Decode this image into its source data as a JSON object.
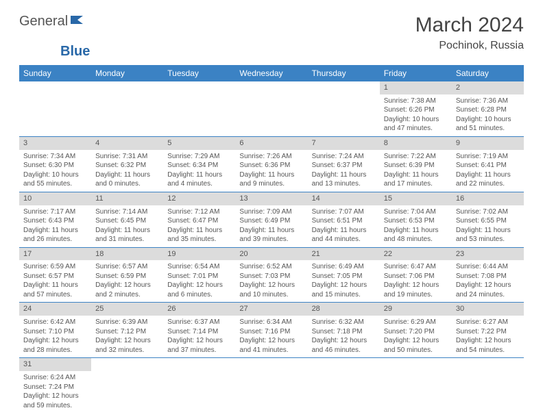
{
  "logo": {
    "text1": "General",
    "text2": "Blue",
    "icon_color": "#2968a8"
  },
  "title": "March 2024",
  "location": "Pochinok, Russia",
  "colors": {
    "header_bg": "#3b82c4",
    "header_fg": "#ffffff",
    "row_alt": "#f2f2f2",
    "daynum_bg": "#dcdcdc",
    "border": "#3b82c4"
  },
  "fonts": {
    "title_size": 30,
    "location_size": 16,
    "header_cell_size": 12,
    "body_size": 10
  },
  "daynames": [
    "Sunday",
    "Monday",
    "Tuesday",
    "Wednesday",
    "Thursday",
    "Friday",
    "Saturday"
  ],
  "weeks": [
    [
      null,
      null,
      null,
      null,
      null,
      {
        "n": "1",
        "sunrise": "7:38 AM",
        "sunset": "6:26 PM",
        "daylight": "10 hours and 47 minutes."
      },
      {
        "n": "2",
        "sunrise": "7:36 AM",
        "sunset": "6:28 PM",
        "daylight": "10 hours and 51 minutes."
      }
    ],
    [
      {
        "n": "3",
        "sunrise": "7:34 AM",
        "sunset": "6:30 PM",
        "daylight": "10 hours and 55 minutes."
      },
      {
        "n": "4",
        "sunrise": "7:31 AM",
        "sunset": "6:32 PM",
        "daylight": "11 hours and 0 minutes."
      },
      {
        "n": "5",
        "sunrise": "7:29 AM",
        "sunset": "6:34 PM",
        "daylight": "11 hours and 4 minutes."
      },
      {
        "n": "6",
        "sunrise": "7:26 AM",
        "sunset": "6:36 PM",
        "daylight": "11 hours and 9 minutes."
      },
      {
        "n": "7",
        "sunrise": "7:24 AM",
        "sunset": "6:37 PM",
        "daylight": "11 hours and 13 minutes."
      },
      {
        "n": "8",
        "sunrise": "7:22 AM",
        "sunset": "6:39 PM",
        "daylight": "11 hours and 17 minutes."
      },
      {
        "n": "9",
        "sunrise": "7:19 AM",
        "sunset": "6:41 PM",
        "daylight": "11 hours and 22 minutes."
      }
    ],
    [
      {
        "n": "10",
        "sunrise": "7:17 AM",
        "sunset": "6:43 PM",
        "daylight": "11 hours and 26 minutes."
      },
      {
        "n": "11",
        "sunrise": "7:14 AM",
        "sunset": "6:45 PM",
        "daylight": "11 hours and 31 minutes."
      },
      {
        "n": "12",
        "sunrise": "7:12 AM",
        "sunset": "6:47 PM",
        "daylight": "11 hours and 35 minutes."
      },
      {
        "n": "13",
        "sunrise": "7:09 AM",
        "sunset": "6:49 PM",
        "daylight": "11 hours and 39 minutes."
      },
      {
        "n": "14",
        "sunrise": "7:07 AM",
        "sunset": "6:51 PM",
        "daylight": "11 hours and 44 minutes."
      },
      {
        "n": "15",
        "sunrise": "7:04 AM",
        "sunset": "6:53 PM",
        "daylight": "11 hours and 48 minutes."
      },
      {
        "n": "16",
        "sunrise": "7:02 AM",
        "sunset": "6:55 PM",
        "daylight": "11 hours and 53 minutes."
      }
    ],
    [
      {
        "n": "17",
        "sunrise": "6:59 AM",
        "sunset": "6:57 PM",
        "daylight": "11 hours and 57 minutes."
      },
      {
        "n": "18",
        "sunrise": "6:57 AM",
        "sunset": "6:59 PM",
        "daylight": "12 hours and 2 minutes."
      },
      {
        "n": "19",
        "sunrise": "6:54 AM",
        "sunset": "7:01 PM",
        "daylight": "12 hours and 6 minutes."
      },
      {
        "n": "20",
        "sunrise": "6:52 AM",
        "sunset": "7:03 PM",
        "daylight": "12 hours and 10 minutes."
      },
      {
        "n": "21",
        "sunrise": "6:49 AM",
        "sunset": "7:05 PM",
        "daylight": "12 hours and 15 minutes."
      },
      {
        "n": "22",
        "sunrise": "6:47 AM",
        "sunset": "7:06 PM",
        "daylight": "12 hours and 19 minutes."
      },
      {
        "n": "23",
        "sunrise": "6:44 AM",
        "sunset": "7:08 PM",
        "daylight": "12 hours and 24 minutes."
      }
    ],
    [
      {
        "n": "24",
        "sunrise": "6:42 AM",
        "sunset": "7:10 PM",
        "daylight": "12 hours and 28 minutes."
      },
      {
        "n": "25",
        "sunrise": "6:39 AM",
        "sunset": "7:12 PM",
        "daylight": "12 hours and 32 minutes."
      },
      {
        "n": "26",
        "sunrise": "6:37 AM",
        "sunset": "7:14 PM",
        "daylight": "12 hours and 37 minutes."
      },
      {
        "n": "27",
        "sunrise": "6:34 AM",
        "sunset": "7:16 PM",
        "daylight": "12 hours and 41 minutes."
      },
      {
        "n": "28",
        "sunrise": "6:32 AM",
        "sunset": "7:18 PM",
        "daylight": "12 hours and 46 minutes."
      },
      {
        "n": "29",
        "sunrise": "6:29 AM",
        "sunset": "7:20 PM",
        "daylight": "12 hours and 50 minutes."
      },
      {
        "n": "30",
        "sunrise": "6:27 AM",
        "sunset": "7:22 PM",
        "daylight": "12 hours and 54 minutes."
      }
    ],
    [
      {
        "n": "31",
        "sunrise": "6:24 AM",
        "sunset": "7:24 PM",
        "daylight": "12 hours and 59 minutes."
      },
      null,
      null,
      null,
      null,
      null,
      null
    ]
  ],
  "labels": {
    "sunrise": "Sunrise: ",
    "sunset": "Sunset: ",
    "daylight": "Daylight: "
  }
}
